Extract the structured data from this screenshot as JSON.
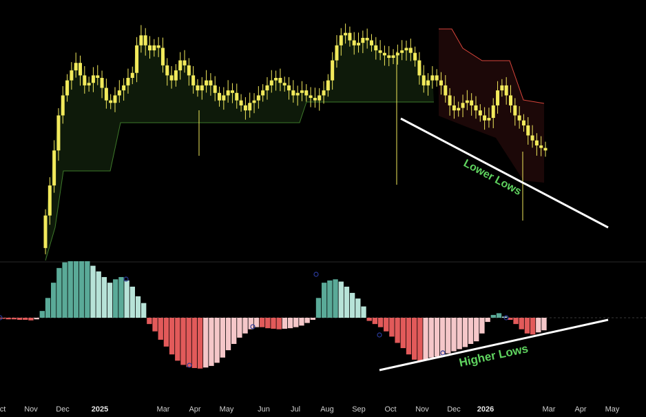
{
  "chart_data": {
    "type": "candlestick+histogram",
    "x_axis": {
      "ticks": [
        "ct",
        "Nov",
        "Dec",
        "2025",
        "Mar",
        "Apr",
        "May",
        "Jun",
        "Jul",
        "Aug",
        "Sep",
        "Oct",
        "Nov",
        "Dec",
        "2026",
        "Mar",
        "Apr",
        "May"
      ],
      "year_ticks": [
        "2025",
        "2026"
      ]
    },
    "price_panel": {
      "series": "candles",
      "up_color": "#f2ea5c",
      "channel_green": "#3e7a2a",
      "channel_red": "#d9453b",
      "candles_close": [
        0.18,
        0.3,
        0.44,
        0.58,
        0.66,
        0.72,
        0.76,
        0.79,
        0.74,
        0.7,
        0.71,
        0.74,
        0.73,
        0.69,
        0.64,
        0.63,
        0.66,
        0.68,
        0.7,
        0.73,
        0.75,
        0.86,
        0.9,
        0.86,
        0.84,
        0.86,
        0.85,
        0.78,
        0.74,
        0.72,
        0.76,
        0.8,
        0.78,
        0.74,
        0.7,
        0.68,
        0.7,
        0.72,
        0.7,
        0.67,
        0.64,
        0.66,
        0.68,
        0.67,
        0.64,
        0.62,
        0.6,
        0.63,
        0.64,
        0.66,
        0.68,
        0.7,
        0.72,
        0.73,
        0.71,
        0.7,
        0.68,
        0.66,
        0.67,
        0.68,
        0.66,
        0.65,
        0.64,
        0.66,
        0.68,
        0.72,
        0.8,
        0.86,
        0.9,
        0.91,
        0.88,
        0.86,
        0.87,
        0.89,
        0.88,
        0.86,
        0.84,
        0.83,
        0.82,
        0.81,
        0.82,
        0.83,
        0.84,
        0.85,
        0.83,
        0.8,
        0.74,
        0.7,
        0.72,
        0.74,
        0.72,
        0.7,
        0.66,
        0.62,
        0.6,
        0.61,
        0.63,
        0.64,
        0.62,
        0.6,
        0.58,
        0.56,
        0.57,
        0.62,
        0.68,
        0.7,
        0.66,
        0.62,
        0.58,
        0.56,
        0.54,
        0.5,
        0.48,
        0.46,
        0.45,
        0.44
      ],
      "annotation_lower": "Lower Lows"
    },
    "oscillator_panel": {
      "series": "histogram",
      "pos_strong": "#5aaa98",
      "pos_weak": "#b7e3d8",
      "neg_strong": "#e25a5a",
      "neg_weak": "#f5c7c9",
      "values": [
        -0.02,
        -0.03,
        -0.03,
        -0.04,
        -0.04,
        -0.05,
        -0.03,
        0.12,
        0.35,
        0.62,
        0.88,
        0.98,
        1.0,
        1.0,
        1.0,
        1.0,
        0.92,
        0.82,
        0.72,
        0.62,
        0.68,
        0.72,
        0.66,
        0.55,
        0.38,
        0.26,
        -0.12,
        -0.26,
        -0.42,
        -0.55,
        -0.7,
        -0.82,
        -0.9,
        -0.94,
        -0.96,
        -0.97,
        -0.95,
        -0.92,
        -0.86,
        -0.76,
        -0.62,
        -0.5,
        -0.38,
        -0.3,
        -0.22,
        -0.18,
        -0.18,
        -0.2,
        -0.21,
        -0.22,
        -0.21,
        -0.2,
        -0.18,
        -0.15,
        -0.1,
        -0.04,
        0.35,
        0.62,
        0.66,
        0.68,
        0.64,
        0.55,
        0.44,
        0.34,
        0.2,
        -0.06,
        -0.12,
        -0.18,
        -0.26,
        -0.36,
        -0.48,
        -0.58,
        -0.7,
        -0.8,
        -0.82,
        -0.8,
        -0.76,
        -0.74,
        -0.72,
        -0.68,
        -0.64,
        -0.6,
        -0.56,
        -0.5,
        -0.45,
        -0.3,
        -0.08,
        0.05,
        0.08,
        0.02,
        -0.04,
        -0.12,
        -0.22,
        -0.3,
        -0.32,
        -0.28,
        -0.24
      ],
      "annotation_higher": "Higher Lows"
    }
  }
}
